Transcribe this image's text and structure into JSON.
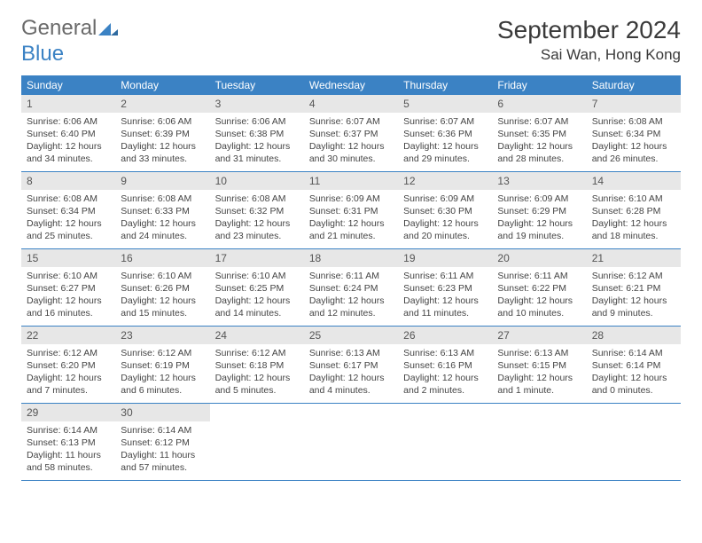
{
  "logo": {
    "text1": "General",
    "text2": "Blue"
  },
  "title": "September 2024",
  "location": "Sai Wan, Hong Kong",
  "colors": {
    "header_bg": "#3b82c4",
    "daynum_bg": "#e7e7e7",
    "text": "#333333",
    "border": "#3b82c4"
  },
  "weekdays": [
    "Sunday",
    "Monday",
    "Tuesday",
    "Wednesday",
    "Thursday",
    "Friday",
    "Saturday"
  ],
  "weeks": [
    [
      {
        "n": "1",
        "sr": "Sunrise: 6:06 AM",
        "ss": "Sunset: 6:40 PM",
        "d1": "Daylight: 12 hours",
        "d2": "and 34 minutes."
      },
      {
        "n": "2",
        "sr": "Sunrise: 6:06 AM",
        "ss": "Sunset: 6:39 PM",
        "d1": "Daylight: 12 hours",
        "d2": "and 33 minutes."
      },
      {
        "n": "3",
        "sr": "Sunrise: 6:06 AM",
        "ss": "Sunset: 6:38 PM",
        "d1": "Daylight: 12 hours",
        "d2": "and 31 minutes."
      },
      {
        "n": "4",
        "sr": "Sunrise: 6:07 AM",
        "ss": "Sunset: 6:37 PM",
        "d1": "Daylight: 12 hours",
        "d2": "and 30 minutes."
      },
      {
        "n": "5",
        "sr": "Sunrise: 6:07 AM",
        "ss": "Sunset: 6:36 PM",
        "d1": "Daylight: 12 hours",
        "d2": "and 29 minutes."
      },
      {
        "n": "6",
        "sr": "Sunrise: 6:07 AM",
        "ss": "Sunset: 6:35 PM",
        "d1": "Daylight: 12 hours",
        "d2": "and 28 minutes."
      },
      {
        "n": "7",
        "sr": "Sunrise: 6:08 AM",
        "ss": "Sunset: 6:34 PM",
        "d1": "Daylight: 12 hours",
        "d2": "and 26 minutes."
      }
    ],
    [
      {
        "n": "8",
        "sr": "Sunrise: 6:08 AM",
        "ss": "Sunset: 6:34 PM",
        "d1": "Daylight: 12 hours",
        "d2": "and 25 minutes."
      },
      {
        "n": "9",
        "sr": "Sunrise: 6:08 AM",
        "ss": "Sunset: 6:33 PM",
        "d1": "Daylight: 12 hours",
        "d2": "and 24 minutes."
      },
      {
        "n": "10",
        "sr": "Sunrise: 6:08 AM",
        "ss": "Sunset: 6:32 PM",
        "d1": "Daylight: 12 hours",
        "d2": "and 23 minutes."
      },
      {
        "n": "11",
        "sr": "Sunrise: 6:09 AM",
        "ss": "Sunset: 6:31 PM",
        "d1": "Daylight: 12 hours",
        "d2": "and 21 minutes."
      },
      {
        "n": "12",
        "sr": "Sunrise: 6:09 AM",
        "ss": "Sunset: 6:30 PM",
        "d1": "Daylight: 12 hours",
        "d2": "and 20 minutes."
      },
      {
        "n": "13",
        "sr": "Sunrise: 6:09 AM",
        "ss": "Sunset: 6:29 PM",
        "d1": "Daylight: 12 hours",
        "d2": "and 19 minutes."
      },
      {
        "n": "14",
        "sr": "Sunrise: 6:10 AM",
        "ss": "Sunset: 6:28 PM",
        "d1": "Daylight: 12 hours",
        "d2": "and 18 minutes."
      }
    ],
    [
      {
        "n": "15",
        "sr": "Sunrise: 6:10 AM",
        "ss": "Sunset: 6:27 PM",
        "d1": "Daylight: 12 hours",
        "d2": "and 16 minutes."
      },
      {
        "n": "16",
        "sr": "Sunrise: 6:10 AM",
        "ss": "Sunset: 6:26 PM",
        "d1": "Daylight: 12 hours",
        "d2": "and 15 minutes."
      },
      {
        "n": "17",
        "sr": "Sunrise: 6:10 AM",
        "ss": "Sunset: 6:25 PM",
        "d1": "Daylight: 12 hours",
        "d2": "and 14 minutes."
      },
      {
        "n": "18",
        "sr": "Sunrise: 6:11 AM",
        "ss": "Sunset: 6:24 PM",
        "d1": "Daylight: 12 hours",
        "d2": "and 12 minutes."
      },
      {
        "n": "19",
        "sr": "Sunrise: 6:11 AM",
        "ss": "Sunset: 6:23 PM",
        "d1": "Daylight: 12 hours",
        "d2": "and 11 minutes."
      },
      {
        "n": "20",
        "sr": "Sunrise: 6:11 AM",
        "ss": "Sunset: 6:22 PM",
        "d1": "Daylight: 12 hours",
        "d2": "and 10 minutes."
      },
      {
        "n": "21",
        "sr": "Sunrise: 6:12 AM",
        "ss": "Sunset: 6:21 PM",
        "d1": "Daylight: 12 hours",
        "d2": "and 9 minutes."
      }
    ],
    [
      {
        "n": "22",
        "sr": "Sunrise: 6:12 AM",
        "ss": "Sunset: 6:20 PM",
        "d1": "Daylight: 12 hours",
        "d2": "and 7 minutes."
      },
      {
        "n": "23",
        "sr": "Sunrise: 6:12 AM",
        "ss": "Sunset: 6:19 PM",
        "d1": "Daylight: 12 hours",
        "d2": "and 6 minutes."
      },
      {
        "n": "24",
        "sr": "Sunrise: 6:12 AM",
        "ss": "Sunset: 6:18 PM",
        "d1": "Daylight: 12 hours",
        "d2": "and 5 minutes."
      },
      {
        "n": "25",
        "sr": "Sunrise: 6:13 AM",
        "ss": "Sunset: 6:17 PM",
        "d1": "Daylight: 12 hours",
        "d2": "and 4 minutes."
      },
      {
        "n": "26",
        "sr": "Sunrise: 6:13 AM",
        "ss": "Sunset: 6:16 PM",
        "d1": "Daylight: 12 hours",
        "d2": "and 2 minutes."
      },
      {
        "n": "27",
        "sr": "Sunrise: 6:13 AM",
        "ss": "Sunset: 6:15 PM",
        "d1": "Daylight: 12 hours",
        "d2": "and 1 minute."
      },
      {
        "n": "28",
        "sr": "Sunrise: 6:14 AM",
        "ss": "Sunset: 6:14 PM",
        "d1": "Daylight: 12 hours",
        "d2": "and 0 minutes."
      }
    ],
    [
      {
        "n": "29",
        "sr": "Sunrise: 6:14 AM",
        "ss": "Sunset: 6:13 PM",
        "d1": "Daylight: 11 hours",
        "d2": "and 58 minutes."
      },
      {
        "n": "30",
        "sr": "Sunrise: 6:14 AM",
        "ss": "Sunset: 6:12 PM",
        "d1": "Daylight: 11 hours",
        "d2": "and 57 minutes."
      },
      null,
      null,
      null,
      null,
      null
    ]
  ]
}
